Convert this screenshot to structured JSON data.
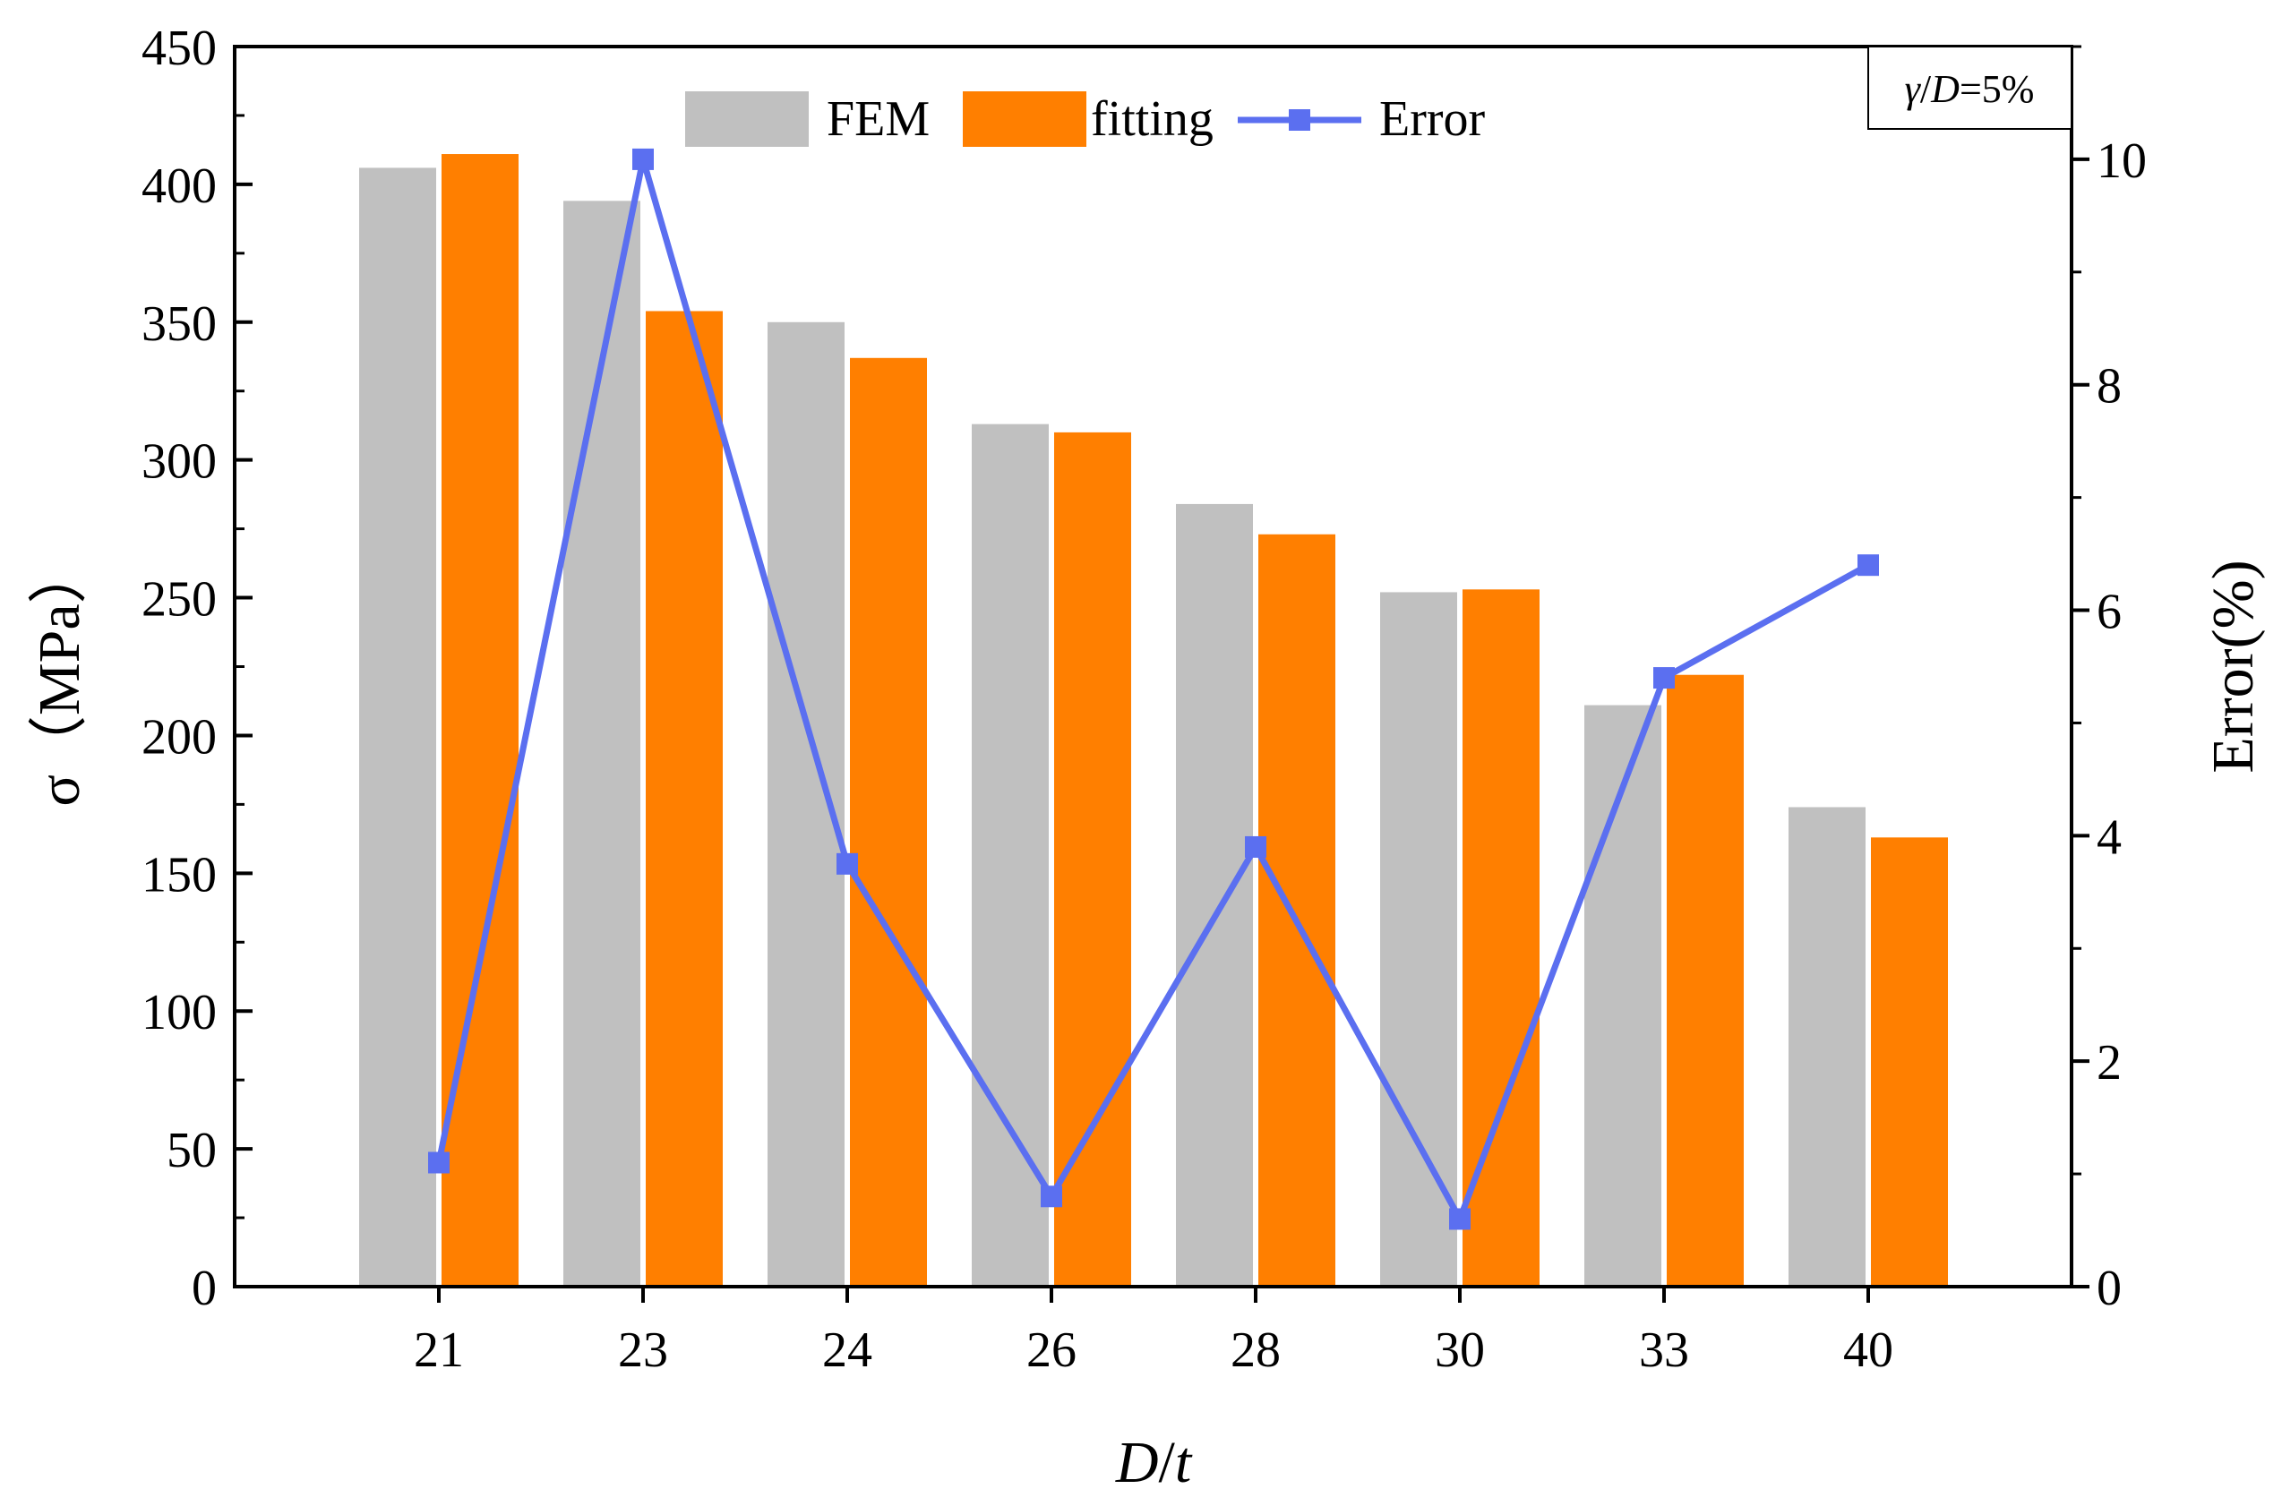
{
  "chart_data": {
    "type": "bar",
    "categories": [
      "21",
      "23",
      "24",
      "26",
      "28",
      "30",
      "33",
      "40"
    ],
    "series": [
      {
        "name": "FEM",
        "kind": "bar",
        "axis": "left",
        "color": "#c0c0c0",
        "values": [
          406,
          394,
          350,
          313,
          284,
          252,
          211,
          174
        ]
      },
      {
        "name": "fitting",
        "kind": "bar",
        "axis": "left",
        "color": "#ff7f00",
        "values": [
          411,
          354,
          337,
          310,
          273,
          253,
          222,
          163
        ]
      },
      {
        "name": "Error",
        "kind": "line",
        "axis": "right",
        "color": "#5b6ff0",
        "values": [
          1.1,
          10.0,
          3.75,
          0.8,
          3.9,
          0.6,
          5.4,
          6.4
        ]
      }
    ],
    "xlabel_italic": "D",
    "xlabel_slash": "/",
    "xlabel_italic2": "t",
    "ylabel": "σ（MPa）",
    "y2label": "Error(%)",
    "ylim": [
      0,
      450
    ],
    "yticks": [
      0,
      50,
      100,
      150,
      200,
      250,
      300,
      350,
      400,
      450
    ],
    "y2lim": [
      0,
      11
    ],
    "y2ticks": [
      0,
      2,
      4,
      6,
      8,
      10
    ],
    "legend": {
      "position": "top",
      "labels": [
        "FEM",
        "fitting",
        "Error"
      ]
    },
    "annotation": {
      "gamma": "γ",
      "slash": "/",
      "d": "D",
      "rest": "=5%"
    },
    "grid": false
  }
}
